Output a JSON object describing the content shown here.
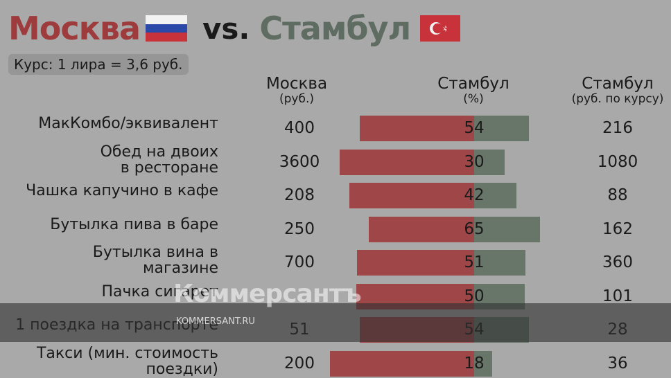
{
  "header": {
    "city1": "Москва",
    "vs": "vs.",
    "city2": "Стамбул",
    "rate": "Курс: 1 лира = 3,6 руб."
  },
  "columns": {
    "moscow_title": "Москва",
    "moscow_unit": "(руб.)",
    "istanbul_pct_title": "Стамбул",
    "istanbul_pct_unit": "(%)",
    "istanbul_rub_title": "Стамбул",
    "istanbul_rub_unit": "(руб. по курсу)"
  },
  "colors": {
    "moscow": "#9e4648",
    "istanbul": "#687669",
    "title_moscow": "#9e3b3d",
    "title_istanbul": "#5e6c62",
    "background": "#a9a9a9"
  },
  "chart_data": {
    "type": "bar",
    "categories": [
      [
        "МакКомбо/эквивалент"
      ],
      [
        "Обед на двоих",
        "в ресторане"
      ],
      [
        "Чашка капучино в кафе"
      ],
      [
        "Бутылка пива в баре"
      ],
      [
        "Бутылка вина в",
        "магазине"
      ],
      [
        "Пачка сигарет"
      ],
      [
        "1 поездка на транспорте"
      ],
      [
        "Такси (мин. стоимость",
        "поездки)"
      ]
    ],
    "moscow_rub": [
      400,
      3600,
      208,
      250,
      700,
      null,
      51,
      200
    ],
    "istanbul_pct": [
      54,
      30,
      42,
      65,
      51,
      50,
      54,
      18
    ],
    "istanbul_rub": [
      216,
      1080,
      88,
      162,
      360,
      101,
      28,
      36
    ]
  },
  "watermark": {
    "logo": "Коммерсантъ",
    "url": "KOMMERSANT.RU"
  }
}
